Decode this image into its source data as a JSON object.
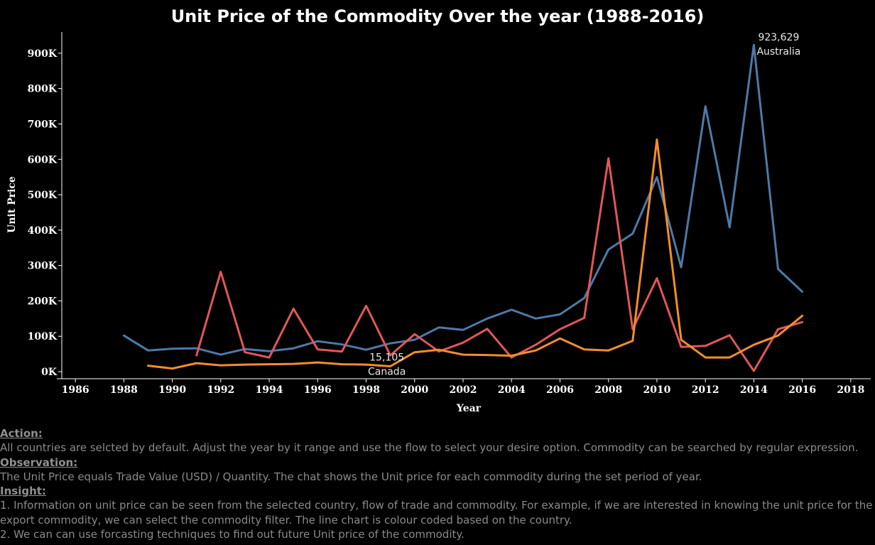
{
  "chart_data": {
    "type": "line",
    "title": "Unit Price of the Commodity Over the year (1988-2016)",
    "xlabel": "Year",
    "ylabel": "Unit Price",
    "xlim": [
      1985,
      2019
    ],
    "ylim": [
      -20000,
      960000
    ],
    "x_ticks": [
      1986,
      1988,
      1990,
      1992,
      1994,
      1996,
      1998,
      2000,
      2002,
      2004,
      2006,
      2008,
      2010,
      2012,
      2014,
      2016,
      2018
    ],
    "y_ticks": [
      {
        "value": 0,
        "label": "0K"
      },
      {
        "value": 100000,
        "label": "100K"
      },
      {
        "value": 200000,
        "label": "200K"
      },
      {
        "value": 300000,
        "label": "300K"
      },
      {
        "value": 400000,
        "label": "400K"
      },
      {
        "value": 500000,
        "label": "500K"
      },
      {
        "value": 600000,
        "label": "600K"
      },
      {
        "value": 700000,
        "label": "700K"
      },
      {
        "value": 800000,
        "label": "800K"
      },
      {
        "value": 900000,
        "label": "900K"
      }
    ],
    "grid": false,
    "series": [
      {
        "color": "#4e79a7",
        "x": [
          1988,
          1989,
          1990,
          1991,
          1992,
          1993,
          1994,
          1995,
          1996,
          1997,
          1998,
          1999,
          2000,
          2001,
          2002,
          2003,
          2004,
          2005,
          2006,
          2007,
          2008,
          2009,
          2010,
          2011,
          2012,
          2013,
          2014,
          2015,
          2016
        ],
        "values": [
          102000,
          60000,
          65000,
          66000,
          48000,
          64000,
          58000,
          66000,
          86000,
          77000,
          62000,
          80000,
          90000,
          125000,
          118000,
          150000,
          175000,
          150000,
          162000,
          208000,
          345000,
          390000,
          550000,
          295000,
          750000,
          408000,
          923629,
          290000,
          226000
        ]
      },
      {
        "color": "#e15759",
        "x": [
          1991,
          1992,
          1993,
          1994,
          1995,
          1996,
          1997,
          1998,
          1999,
          2000,
          2001,
          2002,
          2003,
          2004,
          2005,
          2006,
          2007,
          2008,
          2009,
          2010,
          2011,
          2012,
          2013,
          2014,
          2015,
          2016
        ],
        "values": [
          46000,
          282000,
          55000,
          40000,
          178000,
          63000,
          57000,
          186000,
          46000,
          106000,
          57000,
          82000,
          121000,
          40000,
          76000,
          120000,
          152000,
          603000,
          120000,
          264000,
          70000,
          73000,
          103000,
          2000,
          120000,
          140000
        ]
      },
      {
        "color": "#f28e2b",
        "x": [
          1989,
          1990,
          1991,
          1992,
          1993,
          1994,
          1995,
          1996,
          1997,
          1998,
          1999,
          2000,
          2001,
          2002,
          2003,
          2004,
          2005,
          2006,
          2007,
          2008,
          2009,
          2010,
          2011,
          2012,
          2013,
          2014,
          2015,
          2016
        ],
        "values": [
          17000,
          9000,
          24000,
          18000,
          20000,
          21000,
          22000,
          26000,
          21000,
          20000,
          15105,
          55000,
          62000,
          48000,
          47000,
          45000,
          60000,
          94000,
          63000,
          60000,
          87000,
          656000,
          90000,
          40000,
          40000,
          76000,
          102000,
          158000
        ]
      }
    ],
    "annotations": [
      {
        "value": "923,629",
        "label": "Australia",
        "x": 2014,
        "y": 923629
      },
      {
        "value": "15,105",
        "label": "Canada",
        "x": 1999,
        "y": 15105
      }
    ]
  },
  "notes": {
    "action_header": "Action:",
    "action_text": "All countries are selcted by default. Adjust the year by it range and use the flow to select your desire option. Commodity can be searched by regular expression.",
    "observation_header": "Observation:",
    "observation_text": "The Unit Price equals  Trade Value (USD) / Quantity. The chat shows the Unit price for each commodity during the set period of year.",
    "insight_header": "Insight:",
    "insight_line1": "1. Information on unit price can be seen from the selected country, flow of trade and commodity. For example, if we are interested in knowing the unit price for the",
    "insight_line2": "export commodity, we can select the commodity filter. The line chart is colour coded based on the country.",
    "insight_line3": "2. We can can use forcasting techniques to find out future Unit price of the commodity."
  }
}
